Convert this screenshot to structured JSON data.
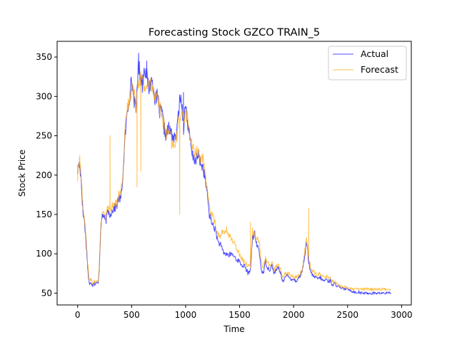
{
  "chart_data": {
    "type": "line",
    "title": "Forecasting Stock GZCO TRAIN_5",
    "xlabel": "Time",
    "ylabel": "Stock Price",
    "xlim": [
      -190,
      3090
    ],
    "ylim": [
      35,
      370
    ],
    "xticks": [
      0,
      500,
      1000,
      1500,
      2000,
      2500,
      3000
    ],
    "yticks": [
      50,
      100,
      150,
      200,
      250,
      300,
      350
    ],
    "grid": false,
    "legend": "top-right",
    "series": [
      {
        "name": "Actual",
        "color": "#0000ff",
        "opacity": 0.7,
        "x": [
          0,
          10,
          20,
          30,
          40,
          50,
          60,
          70,
          80,
          90,
          100,
          110,
          120,
          130,
          140,
          150,
          160,
          170,
          180,
          190,
          200,
          210,
          220,
          230,
          240,
          260,
          280,
          300,
          320,
          340,
          360,
          380,
          400,
          420,
          440,
          460,
          480,
          500,
          520,
          540,
          560,
          580,
          600,
          620,
          640,
          660,
          680,
          700,
          720,
          740,
          760,
          780,
          800,
          820,
          840,
          860,
          880,
          900,
          920,
          940,
          960,
          980,
          1000,
          1020,
          1040,
          1060,
          1080,
          1100,
          1120,
          1140,
          1160,
          1180,
          1200,
          1220,
          1240,
          1260,
          1280,
          1300,
          1320,
          1340,
          1360,
          1380,
          1400,
          1420,
          1440,
          1460,
          1480,
          1500,
          1520,
          1540,
          1560,
          1580,
          1600,
          1620,
          1640,
          1660,
          1680,
          1700,
          1720,
          1740,
          1760,
          1780,
          1800,
          1820,
          1840,
          1860,
          1880,
          1900,
          1920,
          1940,
          1960,
          1980,
          2000,
          2020,
          2040,
          2060,
          2080,
          2100,
          2120,
          2140,
          2160,
          2180,
          2200,
          2220,
          2240,
          2260,
          2280,
          2300,
          2320,
          2340,
          2360,
          2380,
          2400,
          2420,
          2440,
          2460,
          2480,
          2500,
          2520,
          2540,
          2560,
          2580,
          2600,
          2620,
          2640,
          2660,
          2680,
          2700,
          2720,
          2740,
          2760,
          2800,
          2850,
          2900
        ],
        "y": [
          205,
          215,
          210,
          200,
          175,
          150,
          145,
          130,
          110,
          90,
          70,
          60,
          65,
          62,
          60,
          63,
          61,
          62,
          63,
          64,
          80,
          120,
          140,
          150,
          148,
          140,
          155,
          150,
          155,
          158,
          160,
          170,
          170,
          200,
          250,
          280,
          300,
          320,
          300,
          280,
          340,
          330,
          315,
          340,
          325,
          310,
          320,
          315,
          295,
          300,
          280,
          280,
          260,
          250,
          260,
          255,
          250,
          245,
          255,
          290,
          300,
          260,
          290,
          265,
          245,
          225,
          220,
          220,
          225,
          215,
          210,
          195,
          175,
          150,
          140,
          135,
          128,
          115,
          112,
          105,
          100,
          100,
          98,
          100,
          98,
          95,
          92,
          90,
          85,
          85,
          80,
          75,
          80,
          120,
          125,
          110,
          105,
          80,
          75,
          90,
          82,
          80,
          85,
          75,
          80,
          82,
          75,
          65,
          70,
          72,
          70,
          68,
          68,
          65,
          68,
          72,
          78,
          95,
          115,
          90,
          75,
          72,
          70,
          68,
          70,
          68,
          65,
          68,
          65,
          66,
          60,
          62,
          60,
          58,
          55,
          56,
          55,
          55,
          55,
          52,
          52,
          50,
          52,
          50,
          50,
          50,
          50,
          50,
          50,
          50,
          50,
          50,
          50,
          50
        ],
        "extremes": [
          {
            "x": 565,
            "y": 355
          },
          {
            "x": 640,
            "y": 345
          },
          {
            "x": 980,
            "y": 305
          }
        ]
      },
      {
        "name": "Forecast",
        "color": "#ffa500",
        "opacity": 0.7,
        "x": [
          0,
          10,
          20,
          30,
          40,
          50,
          60,
          70,
          80,
          90,
          100,
          110,
          120,
          130,
          140,
          150,
          160,
          170,
          180,
          190,
          200,
          210,
          220,
          230,
          240,
          260,
          280,
          300,
          320,
          340,
          360,
          380,
          400,
          420,
          440,
          460,
          480,
          500,
          520,
          540,
          560,
          580,
          600,
          620,
          640,
          660,
          680,
          700,
          720,
          740,
          760,
          780,
          800,
          820,
          840,
          860,
          880,
          900,
          920,
          940,
          960,
          980,
          1000,
          1020,
          1040,
          1060,
          1080,
          1100,
          1120,
          1140,
          1160,
          1180,
          1200,
          1220,
          1240,
          1260,
          1280,
          1300,
          1320,
          1340,
          1360,
          1380,
          1400,
          1420,
          1440,
          1460,
          1480,
          1500,
          1520,
          1540,
          1560,
          1580,
          1600,
          1620,
          1640,
          1660,
          1680,
          1700,
          1720,
          1740,
          1760,
          1780,
          1800,
          1820,
          1840,
          1860,
          1880,
          1900,
          1920,
          1940,
          1960,
          1980,
          2000,
          2020,
          2040,
          2060,
          2080,
          2100,
          2120,
          2140,
          2160,
          2180,
          2200,
          2220,
          2240,
          2260,
          2280,
          2300,
          2320,
          2340,
          2360,
          2380,
          2400,
          2420,
          2440,
          2460,
          2480,
          2500,
          2520,
          2540,
          2560,
          2580,
          2600,
          2620,
          2640,
          2660,
          2680,
          2700,
          2720,
          2740,
          2760,
          2800,
          2850,
          2900
        ],
        "y": [
          195,
          220,
          215,
          205,
          180,
          155,
          148,
          135,
          115,
          95,
          75,
          65,
          68,
          65,
          62,
          65,
          63,
          64,
          65,
          66,
          82,
          118,
          145,
          155,
          150,
          145,
          160,
          155,
          160,
          162,
          165,
          175,
          178,
          205,
          255,
          285,
          295,
          315,
          305,
          290,
          320,
          325,
          320,
          310,
          315,
          312,
          318,
          310,
          300,
          300,
          285,
          278,
          262,
          252,
          255,
          250,
          235,
          240,
          250,
          270,
          285,
          270,
          280,
          270,
          250,
          235,
          230,
          230,
          230,
          222,
          220,
          200,
          185,
          160,
          150,
          145,
          135,
          125,
          120,
          130,
          125,
          130,
          125,
          120,
          115,
          110,
          105,
          100,
          95,
          90,
          88,
          85,
          85,
          130,
          125,
          120,
          118,
          90,
          82,
          95,
          88,
          85,
          90,
          80,
          85,
          85,
          80,
          70,
          75,
          75,
          75,
          72,
          70,
          70,
          72,
          75,
          80,
          100,
          120,
          95,
          80,
          78,
          75,
          72,
          75,
          72,
          70,
          72,
          70,
          70,
          65,
          65,
          62,
          60,
          58,
          58,
          58,
          57,
          56,
          55,
          55,
          55,
          55,
          55,
          55,
          55,
          55,
          55,
          55,
          55,
          55,
          55,
          55,
          55
        ],
        "extremes": [
          {
            "x": 20,
            "y": 225
          },
          {
            "x": 300,
            "y": 250
          },
          {
            "x": 550,
            "y": 185
          },
          {
            "x": 585,
            "y": 205
          },
          {
            "x": 945,
            "y": 150
          },
          {
            "x": 1600,
            "y": 140
          },
          {
            "x": 2140,
            "y": 158
          }
        ]
      }
    ]
  }
}
